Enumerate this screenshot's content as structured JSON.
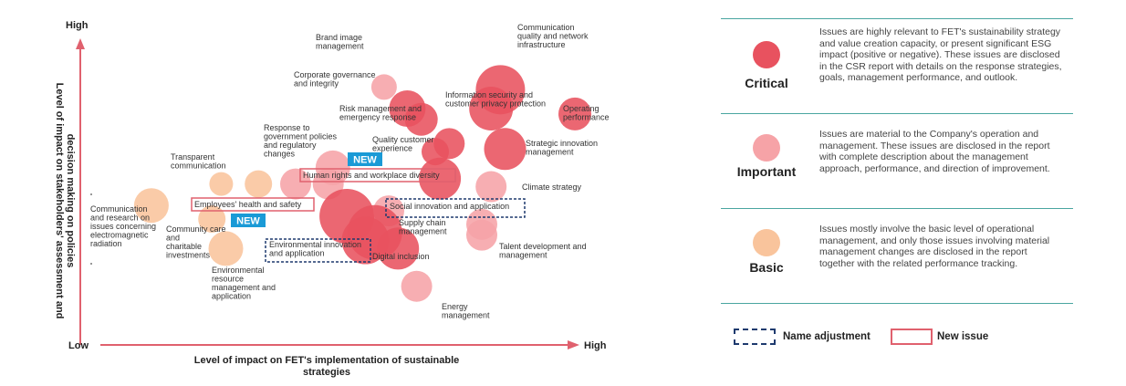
{
  "chart_data": {
    "type": "scatter",
    "xlabel_lines": [
      "Level of impact on FET's implementation of sustainable",
      "strategies"
    ],
    "ylabel_lines": [
      "Level of impact on stakeholders' assessment and",
      "decision making on policies"
    ],
    "x_low_label": "Low",
    "x_high_label": "High",
    "y_high_label": "High",
    "issues": [
      {
        "label": [
          "Communication",
          "quality and network",
          "infrastructure"
        ],
        "level": "critical",
        "x": 0.84,
        "y": 0.87,
        "label_pos": "above-right"
      },
      {
        "label": [
          "Brand image",
          "management"
        ],
        "level": "important",
        "x": 0.59,
        "y": 0.88,
        "label_pos": "left"
      },
      {
        "label": [
          "Corporate governance",
          "and integrity"
        ],
        "level": "critical",
        "x": 0.64,
        "y": 0.8,
        "label_pos": "left"
      },
      {
        "label": [],
        "level": "critical",
        "x": 0.67,
        "y": 0.76,
        "label_pos": "none"
      },
      {
        "label": [
          "Information security and",
          "customer privacy protection"
        ],
        "level": "critical",
        "x": 0.82,
        "y": 0.8,
        "label_pos": "below"
      },
      {
        "label": [
          "Operating",
          "performance"
        ],
        "level": "critical",
        "x": 1.0,
        "y": 0.78,
        "label_pos": "below"
      },
      {
        "label": [
          "Risk management and",
          "emergency response"
        ],
        "level": "critical",
        "x": 0.73,
        "y": 0.67,
        "label_pos": "left-below"
      },
      {
        "label": [
          "Strategic innovation",
          "management"
        ],
        "level": "critical",
        "x": 0.85,
        "y": 0.65,
        "label_pos": "right"
      },
      {
        "label": [
          "Quality customer",
          "experience"
        ],
        "level": "critical",
        "x": 0.7,
        "y": 0.64,
        "label_pos": "left"
      },
      {
        "label": [
          "Response to",
          "government policies",
          "and regulatory",
          "changes"
        ],
        "level": "important",
        "x": 0.48,
        "y": 0.58,
        "label_pos": "above-left"
      },
      {
        "label": [
          "Human rights and workplace diversity"
        ],
        "level": "critical",
        "x": 0.71,
        "y": 0.54,
        "label_pos": "left-box"
      },
      {
        "label": [
          "Climate strategy"
        ],
        "level": "important",
        "x": 0.82,
        "y": 0.51,
        "label_pos": "right"
      },
      {
        "label": [
          "Transparent",
          "communication"
        ],
        "level": "basic",
        "x": 0.24,
        "y": 0.52,
        "label_pos": "above"
      },
      {
        "label": [],
        "level": "basic",
        "x": 0.32,
        "y": 0.52,
        "label_pos": "none"
      },
      {
        "label": [],
        "level": "important",
        "x": 0.4,
        "y": 0.52,
        "label_pos": "none"
      },
      {
        "label": [],
        "level": "important",
        "x": 0.47,
        "y": 0.52,
        "label_pos": "none"
      },
      {
        "label": [
          "Employees' health and safety"
        ],
        "level": "critical",
        "x": 0.51,
        "y": 0.4,
        "label_pos": "left-box"
      },
      {
        "label": [
          "Social innovation and application"
        ],
        "level": "important",
        "x": 0.6,
        "y": 0.42,
        "label_pos": "box"
      },
      {
        "label": [
          "Communication",
          "and research on",
          "issues concerning",
          "electromagnetic",
          "radiation"
        ],
        "level": "basic",
        "x": 0.09,
        "y": 0.44,
        "label_pos": "left"
      },
      {
        "label": [
          "Community care",
          "and",
          "charitable",
          "investments"
        ],
        "level": "basic",
        "x": 0.22,
        "y": 0.39,
        "label_pos": "below"
      },
      {
        "label": [],
        "level": "critical",
        "x": 0.57,
        "y": 0.34,
        "label_pos": "none"
      },
      {
        "label": [
          "Environmental innovation",
          "and application"
        ],
        "level": "critical",
        "x": 0.55,
        "y": 0.31,
        "label_pos": "box-below"
      },
      {
        "label": [
          "Supply chain",
          "management"
        ],
        "level": "important",
        "x": 0.8,
        "y": 0.37,
        "label_pos": "left-below"
      },
      {
        "label": [
          "Talent development and",
          "management"
        ],
        "level": "important",
        "x": 0.8,
        "y": 0.33,
        "label_pos": "below-right"
      },
      {
        "label": [
          "Environmental",
          "resource",
          "management and",
          "application"
        ],
        "level": "basic",
        "x": 0.25,
        "y": 0.28,
        "label_pos": "below"
      },
      {
        "label": [
          "Digital inclusion"
        ],
        "level": "critical",
        "x": 0.62,
        "y": 0.28,
        "label_pos": "right-below"
      },
      {
        "label": [
          "Energy",
          "management"
        ],
        "level": "important",
        "x": 0.66,
        "y": 0.14,
        "label_pos": "below-right"
      }
    ],
    "new_tags": [
      "NEW",
      "NEW"
    ],
    "levels": {
      "critical": {
        "name": "Critical",
        "color": "#e8525f",
        "description": "Issues are highly relevant to FET's sustainability strategy and value creation capacity, or present significant ESG impact (positive or negative). These issues are disclosed in the CSR report with details on the response strategies, goals, management performance, and outlook."
      },
      "important": {
        "name": "Important",
        "color": "#f6a3a7",
        "description": "Issues are material to the Company's operation and management. These issues are disclosed in the report with complete description about the management approach, performance, and direction of improvement."
      },
      "basic": {
        "name": "Basic",
        "color": "#f9c49c",
        "description": "Issues mostly involve the basic level of operational management, and only those issues involving material management changes are disclosed in the report together with the related performance tracking."
      }
    },
    "legend_key": {
      "dashed_label": "Name adjustment",
      "solid_label": "New issue"
    },
    "colors": {
      "axis": "#e0616e",
      "new_tag": "#1a9ad6",
      "dashed_box": "#1e3a6e",
      "solid_box": "#e0616e",
      "legend_rule": "#4aa6a0"
    }
  }
}
